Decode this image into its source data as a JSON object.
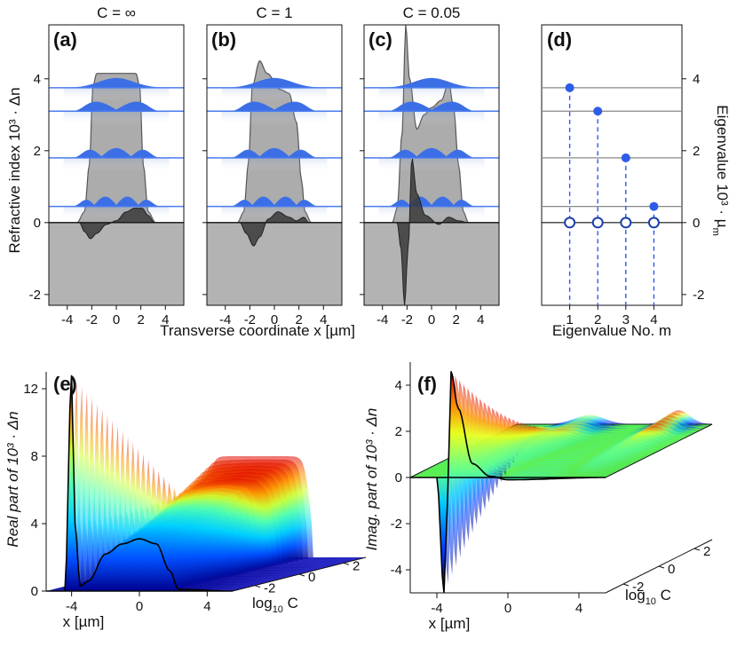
{
  "chart_data": [
    {
      "id": "a",
      "type": "line",
      "panel_label": "(a)",
      "title": "C = ∞",
      "ylabel": "Refractive index 10³ · Δn",
      "xlabel": "Transverse coordinate x [µm]",
      "xlim": [
        -5.5,
        5.5
      ],
      "ylim": [
        -2.3,
        5.5
      ],
      "xticks": [
        -4,
        -2,
        0,
        2,
        4
      ],
      "yticks": [
        -2,
        0,
        2,
        4
      ],
      "guided_mode_eigenvalues": [
        0.45,
        1.8,
        3.1,
        3.75
      ],
      "real_profile": [
        [
          -5.5,
          0
        ],
        [
          -3.2,
          0
        ],
        [
          -2.6,
          0.3
        ],
        [
          -2.2,
          1.6
        ],
        [
          -1.9,
          3.8
        ],
        [
          -1.6,
          4.15
        ],
        [
          1.6,
          4.15
        ],
        [
          1.9,
          3.8
        ],
        [
          2.2,
          1.6
        ],
        [
          2.6,
          0.3
        ],
        [
          3.2,
          0
        ],
        [
          5.5,
          0
        ]
      ],
      "imag_profile": [
        [
          -5.5,
          0
        ],
        [
          -3,
          0
        ],
        [
          -2.6,
          -0.25
        ],
        [
          -2.1,
          -0.45
        ],
        [
          -1.6,
          -0.3
        ],
        [
          -0.8,
          -0.05
        ],
        [
          0,
          0.05
        ],
        [
          0.8,
          0.3
        ],
        [
          1.5,
          0.4
        ],
        [
          2.1,
          0.4
        ],
        [
          2.6,
          0.2
        ],
        [
          3.1,
          0
        ],
        [
          5.5,
          0
        ]
      ]
    },
    {
      "id": "b",
      "type": "line",
      "panel_label": "(b)",
      "title": "C = 1",
      "xlim": [
        -5.5,
        5.5
      ],
      "ylim": [
        -2.3,
        5.5
      ],
      "xticks": [
        -4,
        -2,
        0,
        2,
        4
      ],
      "guided_mode_eigenvalues": [
        0.45,
        1.8,
        3.1,
        3.75
      ],
      "real_profile": [
        [
          -5.5,
          0
        ],
        [
          -3,
          0
        ],
        [
          -2.5,
          0.3
        ],
        [
          -2.1,
          1.7
        ],
        [
          -1.8,
          3.8
        ],
        [
          -1.2,
          4.5
        ],
        [
          -0.6,
          4.15
        ],
        [
          0.5,
          3.7
        ],
        [
          1.2,
          3.6
        ],
        [
          1.8,
          2.8
        ],
        [
          2.2,
          1.2
        ],
        [
          2.5,
          0.3
        ],
        [
          3,
          0
        ],
        [
          5.5,
          0
        ]
      ],
      "imag_profile": [
        [
          -5.5,
          0
        ],
        [
          -2.8,
          0
        ],
        [
          -2.3,
          -0.3
        ],
        [
          -1.7,
          -0.65
        ],
        [
          -1.2,
          -0.4
        ],
        [
          -0.5,
          0.1
        ],
        [
          0.3,
          0.3
        ],
        [
          1.2,
          0.15
        ],
        [
          1.8,
          0.05
        ],
        [
          2.4,
          0.15
        ],
        [
          2.8,
          0
        ],
        [
          5.5,
          0
        ]
      ]
    },
    {
      "id": "c",
      "type": "line",
      "panel_label": "(c)",
      "title": "C = 0.05",
      "xlim": [
        -5.5,
        5.5
      ],
      "ylim": [
        -2.3,
        5.5
      ],
      "xticks": [
        -4,
        -2,
        0,
        2,
        4
      ],
      "guided_mode_eigenvalues": [
        0.45,
        1.8,
        3.1,
        3.75
      ],
      "real_profile": [
        [
          -5.5,
          0
        ],
        [
          -3.2,
          0
        ],
        [
          -2.8,
          0.4
        ],
        [
          -2.4,
          2.5
        ],
        [
          -2.1,
          5.5
        ],
        [
          -1.8,
          4.0
        ],
        [
          -1.2,
          2.6
        ],
        [
          -0.6,
          3.0
        ],
        [
          0,
          3.2
        ],
        [
          0.8,
          3.4
        ],
        [
          1.4,
          3.9
        ],
        [
          1.8,
          3.2
        ],
        [
          2.2,
          1.6
        ],
        [
          2.6,
          0.3
        ],
        [
          3,
          0
        ],
        [
          5.5,
          0
        ]
      ],
      "imag_profile": [
        [
          -5.5,
          0
        ],
        [
          -2.8,
          0
        ],
        [
          -2.5,
          -0.7
        ],
        [
          -2.2,
          -2.3
        ],
        [
          -1.9,
          -0.7
        ],
        [
          -1.6,
          1.8
        ],
        [
          -1.2,
          0.8
        ],
        [
          -0.5,
          0.2
        ],
        [
          0.6,
          -0.05
        ],
        [
          1.4,
          0.15
        ],
        [
          2.2,
          0.05
        ],
        [
          3,
          0
        ],
        [
          5.5,
          0
        ]
      ]
    },
    {
      "id": "d",
      "type": "scatter",
      "panel_label": "(d)",
      "xlabel": "Eigenvalue No. m",
      "ylabel": "Eigenvalue 10³ · µ",
      "ylabel_sub": "m",
      "xlim": [
        0,
        5
      ],
      "ylim": [
        -2.3,
        5.5
      ],
      "xticks": [
        1,
        2,
        3,
        4
      ],
      "yticks": [
        -2,
        0,
        2,
        4
      ],
      "x": [
        1,
        2,
        3,
        4
      ],
      "real_values": [
        3.75,
        3.1,
        1.8,
        0.45
      ],
      "imag_values": [
        0,
        0,
        0,
        0
      ]
    },
    {
      "id": "e",
      "type": "surface",
      "panel_label": "(e)",
      "zlabel": "Real part of 10³ · Δn",
      "xlabel": "x [µm]",
      "ylabel": "log",
      "ylabel_sub": "10",
      "ylabel_tail": " C",
      "xticks": [
        -4,
        0,
        4
      ],
      "yticks": [
        -2,
        0,
        2
      ],
      "zticks": [
        0,
        4,
        8,
        12
      ],
      "zlim": [
        0,
        13
      ],
      "front_profile_logC_min": [
        [
          -5.5,
          0
        ],
        [
          -4.4,
          0
        ],
        [
          -4.0,
          12.8
        ],
        [
          -3.8,
          4
        ],
        [
          -3.5,
          0.3
        ],
        [
          -3.0,
          0.6
        ],
        [
          -2,
          2.2
        ],
        [
          -1,
          2.8
        ],
        [
          0,
          3.1
        ],
        [
          1,
          2.8
        ],
        [
          1.8,
          1.2
        ],
        [
          2.3,
          0.1
        ],
        [
          5.5,
          0
        ]
      ]
    },
    {
      "id": "f",
      "type": "surface",
      "panel_label": "(f)",
      "zlabel": "Imag. part of 10³ · Δn",
      "xlabel": "x [µm]",
      "ylabel": "log",
      "ylabel_sub": "10",
      "ylabel_tail": " C",
      "xticks": [
        -4,
        0,
        4
      ],
      "yticks": [
        -2,
        0,
        2
      ],
      "zticks": [
        -4,
        -2,
        0,
        2,
        4
      ],
      "zlim": [
        -5,
        5
      ],
      "front_profile_logC_min": [
        [
          -5.5,
          0
        ],
        [
          -4.0,
          0
        ],
        [
          -3.6,
          -5
        ],
        [
          -3.4,
          -1
        ],
        [
          -3.2,
          4.6
        ],
        [
          -2.8,
          3
        ],
        [
          -2,
          0.6
        ],
        [
          -1,
          0.05
        ],
        [
          0,
          -0.1
        ],
        [
          5.5,
          0
        ]
      ]
    }
  ]
}
